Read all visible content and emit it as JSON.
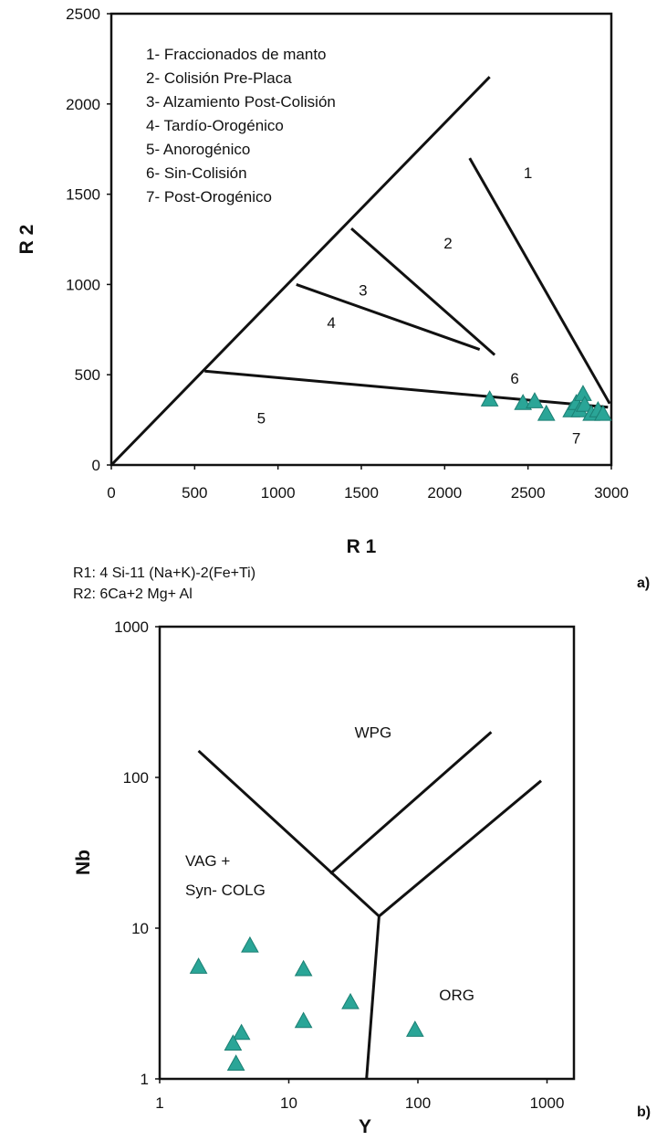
{
  "chart_data": [
    {
      "type": "scatter",
      "panel_label": "a)",
      "xlabel": "R 1",
      "ylabel": "R 2",
      "xlim": [
        0,
        3000
      ],
      "ylim": [
        0,
        2500
      ],
      "x_ticks": [
        "0",
        "500",
        "1000",
        "1500",
        "2000",
        "2500",
        "3000"
      ],
      "y_ticks": [
        "0",
        "500",
        "1000",
        "1500",
        "2000",
        "2500"
      ],
      "grid": false,
      "legend": [
        "1- Fraccionados de manto",
        "2- Colisión Pre-Placa",
        "3- Alzamiento Post-Colisión",
        "4- Tardío-Orogénico",
        "5- Anorogénico",
        "6- Sin-Colisión",
        "7- Post-Orogénico"
      ],
      "field_labels": [
        {
          "text": "1",
          "x": 2500,
          "y": 1620
        },
        {
          "text": "2",
          "x": 2020,
          "y": 1230
        },
        {
          "text": "3",
          "x": 1510,
          "y": 970
        },
        {
          "text": "4",
          "x": 1320,
          "y": 790
        },
        {
          "text": "5",
          "x": 900,
          "y": 260
        },
        {
          "text": "6",
          "x": 2420,
          "y": 480
        },
        {
          "text": "7",
          "x": 2790,
          "y": 150
        }
      ],
      "boundaries": [
        {
          "x": [
            0,
            2270
          ],
          "y": [
            0,
            2150
          ]
        },
        {
          "x": [
            560,
            2980
          ],
          "y": [
            520,
            320
          ]
        },
        {
          "x": [
            1440,
            2300
          ],
          "y": [
            1310,
            610
          ]
        },
        {
          "x": [
            1110,
            2210
          ],
          "y": [
            1000,
            640
          ]
        },
        {
          "x": [
            2150,
            2990
          ],
          "y": [
            1700,
            340
          ]
        }
      ],
      "points": [
        {
          "x": 2270,
          "y": 360
        },
        {
          "x": 2470,
          "y": 340
        },
        {
          "x": 2540,
          "y": 350
        },
        {
          "x": 2610,
          "y": 280
        },
        {
          "x": 2760,
          "y": 300
        },
        {
          "x": 2790,
          "y": 340
        },
        {
          "x": 2810,
          "y": 300
        },
        {
          "x": 2830,
          "y": 390
        },
        {
          "x": 2840,
          "y": 330
        },
        {
          "x": 2880,
          "y": 280
        },
        {
          "x": 2920,
          "y": 300
        },
        {
          "x": 2950,
          "y": 280
        }
      ],
      "notes": [
        "R1: 4 Si-11 (Na+K)-2(Fe+Ti)",
        "R2: 6Ca+2 Mg+ Al"
      ],
      "marker_color": "#2aa597"
    },
    {
      "type": "scatter",
      "panel_label": "b)",
      "xlabel": "Y",
      "ylabel": "Nb",
      "scale": "log",
      "xlim": [
        1,
        2000
      ],
      "ylim": [
        1,
        1000
      ],
      "x_ticks": [
        "1",
        "10",
        "100",
        "1000"
      ],
      "y_ticks": [
        "1",
        "10",
        "100",
        "1000"
      ],
      "grid": false,
      "field_labels": [
        {
          "text": "WPG",
          "x": 45,
          "y": 200
        },
        {
          "text": "VAG +",
          "x": 3.0,
          "y": 28
        },
        {
          "text": "Syn- COLG",
          "x": 5.0,
          "y": 18
        },
        {
          "text": "ORG",
          "x": 200,
          "y": 3.6
        }
      ],
      "boundaries": [
        {
          "x": [
            2,
            50
          ],
          "y": [
            150,
            12
          ]
        },
        {
          "x": [
            21,
            370
          ],
          "y": [
            23,
            200
          ]
        },
        {
          "x": [
            50,
            900
          ],
          "y": [
            12,
            95
          ]
        },
        {
          "x": [
            50,
            40
          ],
          "y": [
            12,
            1
          ]
        }
      ],
      "points": [
        {
          "x": 2.0,
          "y": 5.5
        },
        {
          "x": 5.0,
          "y": 7.6
        },
        {
          "x": 13,
          "y": 5.3
        },
        {
          "x": 30,
          "y": 3.2
        },
        {
          "x": 13,
          "y": 2.4
        },
        {
          "x": 4.3,
          "y": 2.0
        },
        {
          "x": 3.7,
          "y": 1.7
        },
        {
          "x": 3.9,
          "y": 1.25
        },
        {
          "x": 95,
          "y": 2.1
        }
      ],
      "marker_color": "#2aa597"
    }
  ]
}
